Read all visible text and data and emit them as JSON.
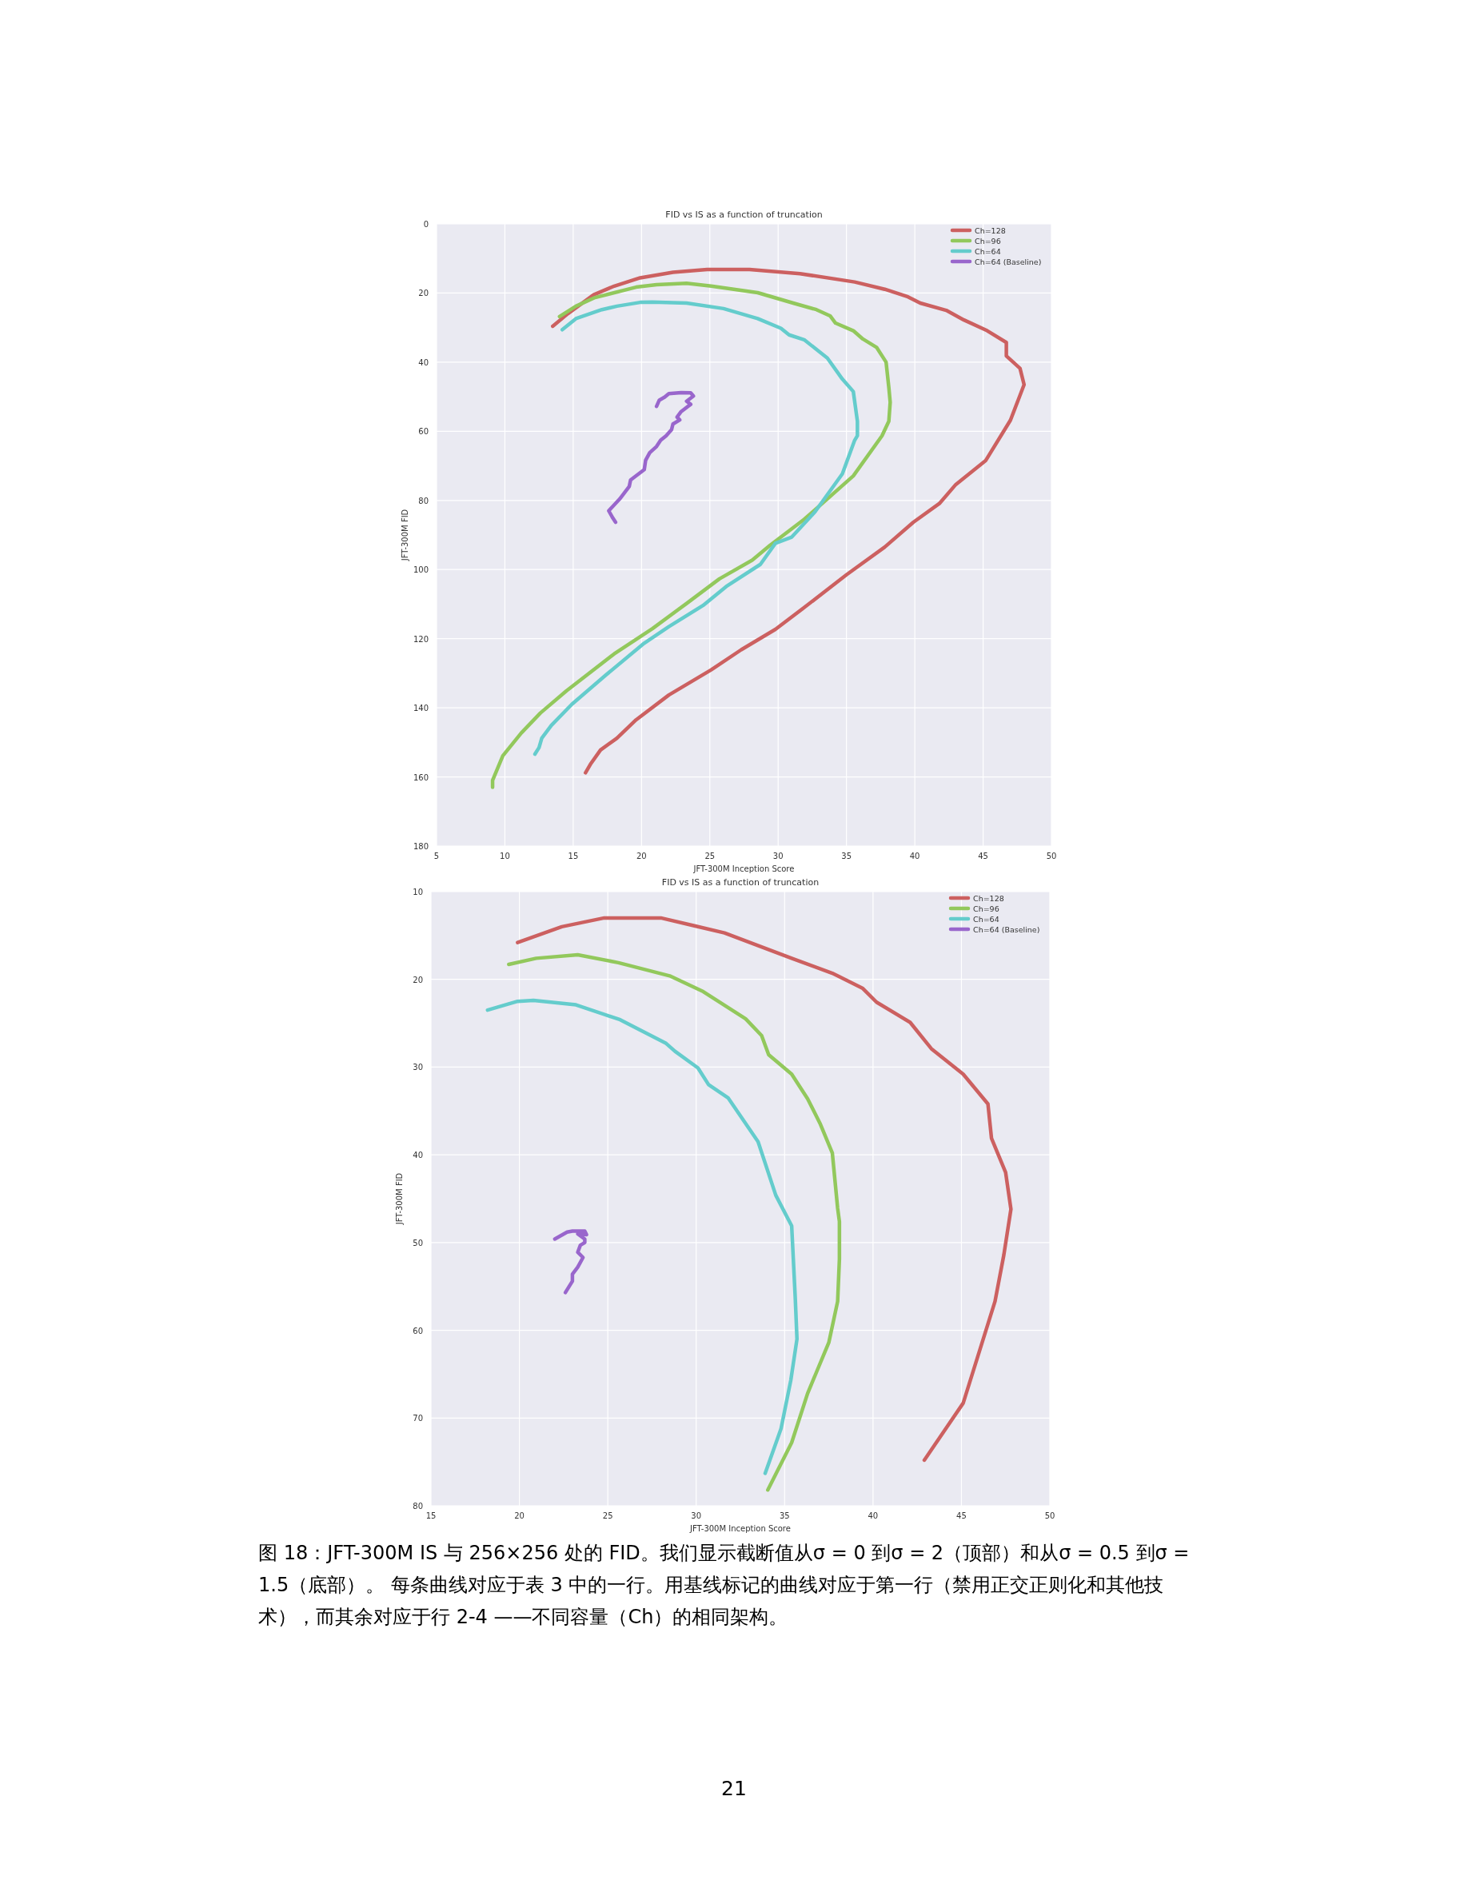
{
  "chart_data": [
    {
      "type": "line",
      "title": "FID vs IS as a function of truncation",
      "xlabel": "JFT-300M Inception Score",
      "ylabel": "JFT-300M FID",
      "xlim": [
        5,
        50
      ],
      "ylim": [
        180,
        0
      ],
      "xticks": [
        5,
        10,
        15,
        20,
        25,
        30,
        35,
        40,
        45,
        50
      ],
      "yticks": [
        0,
        20,
        40,
        60,
        80,
        100,
        120,
        140,
        160,
        180
      ],
      "grid": true,
      "legend": "top right",
      "series": [
        {
          "name": "Ch=128",
          "color": "#cc6060",
          "x": [
            15.9,
            16.3,
            17.0,
            18.2,
            19.6,
            22.0,
            25.1,
            27.3,
            29.8,
            31.9,
            35.0,
            37.8,
            39.9,
            41.8,
            43.0,
            45.2,
            47.0,
            48.0,
            47.7,
            46.7,
            46.7,
            45.3,
            43.6,
            42.3,
            40.4,
            39.5,
            37.8,
            35.6,
            31.6,
            27.9,
            24.8,
            22.3,
            19.9,
            18.0,
            16.5,
            14.6,
            13.5
          ],
          "values": [
            158.8,
            156.1,
            152.2,
            148.8,
            143.5,
            136.3,
            129.0,
            123.2,
            117.3,
            111.0,
            101.5,
            93.5,
            86.3,
            80.9,
            75.4,
            68.4,
            56.8,
            46.5,
            41.8,
            38.2,
            34.3,
            30.9,
            27.8,
            25.0,
            22.9,
            21.1,
            18.9,
            16.8,
            14.4,
            13.2,
            13.2,
            14.0,
            15.6,
            18.0,
            20.5,
            26.0,
            29.6
          ]
        },
        {
          "name": "Ch=96",
          "color": "#92c85c",
          "x": [
            9.1,
            9.1,
            9.85,
            11.2,
            12.6,
            14.5,
            18.0,
            20.8,
            23.3,
            25.7,
            28.1,
            29.4,
            31.9,
            35.5,
            37.6,
            38.1,
            38.2,
            38.1,
            37.9,
            37.2,
            36.2,
            35.5,
            34.2,
            33.8,
            32.8,
            31.1,
            28.5,
            25.1,
            23.3,
            21.1,
            19.6,
            16.6,
            15.2,
            14.0
          ],
          "values": [
            163.0,
            161.0,
            153.9,
            147.3,
            141.5,
            135.1,
            124.4,
            117.1,
            109.8,
            102.7,
            97.3,
            93.0,
            85.5,
            72.9,
            61.3,
            57.1,
            51.6,
            47.3,
            40.0,
            35.7,
            33.3,
            30.9,
            28.7,
            26.6,
            24.8,
            22.9,
            19.9,
            18.0,
            17.2,
            17.6,
            18.3,
            21.3,
            23.8,
            26.8
          ]
        },
        {
          "name": "Ch=64",
          "color": "#64cccc",
          "x": [
            12.2,
            12.5,
            12.7,
            13.4,
            14.9,
            17.4,
            20.2,
            22.0,
            24.5,
            26.2,
            28.7,
            29.8,
            31.0,
            32.7,
            34.7,
            35.6,
            35.8,
            35.8,
            35.5,
            34.7,
            33.6,
            31.9,
            30.8,
            30.2,
            28.5,
            26.0,
            23.3,
            20.8,
            19.9,
            18.2,
            17.1,
            15.2,
            14.2
          ],
          "values": [
            153.4,
            151.5,
            148.8,
            145.1,
            139.0,
            130.5,
            121.3,
            116.5,
            110.4,
            104.9,
            98.5,
            92.4,
            90.6,
            83.3,
            72.3,
            62.6,
            61.3,
            57.1,
            48.5,
            44.9,
            38.8,
            33.5,
            32.1,
            30.2,
            27.4,
            24.5,
            22.9,
            22.6,
            22.7,
            23.8,
            24.8,
            27.4,
            30.6
          ]
        },
        {
          "name": "Ch=64 (Baseline)",
          "color": "#9966cc",
          "x": [
            18.1,
            17.9,
            17.6,
            18.4,
            19.1,
            19.2,
            20.2,
            20.3,
            20.6,
            21.1,
            21.4,
            21.8,
            22.2,
            22.3,
            22.8,
            22.6,
            22.9,
            23.6,
            23.3,
            23.8,
            23.6,
            22.9,
            22.0,
            21.7,
            21.3,
            21.1
          ],
          "values": [
            86.3,
            85.1,
            83.0,
            79.6,
            76.0,
            74.1,
            71.1,
            68.4,
            66.2,
            64.4,
            62.6,
            61.3,
            59.5,
            57.9,
            56.7,
            55.9,
            54.3,
            52.2,
            51.3,
            49.8,
            48.9,
            48.8,
            49.1,
            50.1,
            51.0,
            52.8
          ]
        }
      ]
    },
    {
      "type": "line",
      "title": "FID vs IS as a function of truncation",
      "xlabel": "JFT-300M Inception Score",
      "ylabel": "JFT-300M FID",
      "xlim": [
        15,
        50
      ],
      "ylim": [
        80,
        10
      ],
      "xticks": [
        15,
        20,
        25,
        30,
        35,
        40,
        45,
        50
      ],
      "yticks": [
        10,
        20,
        30,
        40,
        50,
        60,
        70,
        80
      ],
      "grid": true,
      "legend": "top right",
      "series": [
        {
          "name": "Ch=128",
          "color": "#cc6060",
          "x": [
            19.9,
            22.4,
            24.8,
            28.0,
            29.9,
            31.6,
            35.4,
            37.7,
            39.4,
            40.2,
            42.1,
            43.3,
            45.1,
            46.5,
            46.7,
            47.5,
            47.8,
            47.4,
            46.9,
            45.1,
            42.9
          ],
          "values": [
            15.8,
            14.0,
            13.0,
            13.0,
            13.9,
            14.7,
            17.6,
            19.3,
            21.0,
            22.6,
            24.9,
            27.9,
            30.8,
            34.2,
            38.1,
            42.0,
            46.2,
            51.4,
            56.7,
            68.3,
            74.8
          ]
        },
        {
          "name": "Ch=96",
          "color": "#92c85c",
          "x": [
            19.4,
            20.95,
            23.3,
            25.6,
            28.5,
            30.4,
            32.8,
            33.7,
            34.1,
            35.4,
            36.3,
            37.0,
            37.7,
            38.0,
            38.1,
            38.1,
            38.0,
            37.5,
            36.3,
            35.4,
            34.05
          ],
          "values": [
            18.3,
            17.6,
            17.2,
            18.1,
            19.6,
            21.4,
            24.5,
            26.4,
            28.6,
            30.8,
            33.6,
            36.4,
            39.8,
            46.1,
            47.6,
            51.9,
            56.7,
            61.4,
            67.2,
            72.8,
            78.2
          ]
        },
        {
          "name": "Ch=64",
          "color": "#64cccc",
          "x": [
            18.2,
            19.9,
            20.8,
            23.2,
            25.7,
            28.3,
            28.8,
            30.1,
            30.7,
            31.8,
            33.5,
            34.5,
            35.4,
            35.6,
            35.7,
            35.35,
            34.8,
            33.9
          ],
          "values": [
            23.5,
            22.5,
            22.4,
            22.9,
            24.6,
            27.3,
            28.2,
            30.1,
            32.0,
            33.5,
            38.5,
            44.6,
            48.1,
            56.2,
            61.0,
            65.7,
            71.2,
            76.3
          ]
        },
        {
          "name": "Ch=64 (Baseline)",
          "color": "#9966cc",
          "x": [
            22.0,
            22.7,
            23.0,
            23.7,
            23.8,
            23.3,
            23.7,
            23.7,
            23.45,
            23.3,
            23.6,
            23.3,
            23.0,
            23.0,
            22.6
          ],
          "values": [
            49.6,
            48.8,
            48.7,
            48.7,
            49.1,
            49.0,
            49.6,
            50.0,
            50.3,
            51.1,
            51.7,
            52.8,
            53.6,
            54.4,
            55.7
          ]
        }
      ],
      "annotations": [
        "图 18：JFT-300M IS 与 256×256 处的 FID。我们显示截断值从σ = 0 到σ = 2（顶部）和从σ = 0.5 到σ = 1.5（底部）。 每条曲线对应于表 3 中的一行。用基线标记的曲线对应于第一行（禁用正交正则化和其他技术），而其余对应于行 2-4 ——不同容量（Ch）的相同架构。",
        "21"
      ]
    }
  ]
}
